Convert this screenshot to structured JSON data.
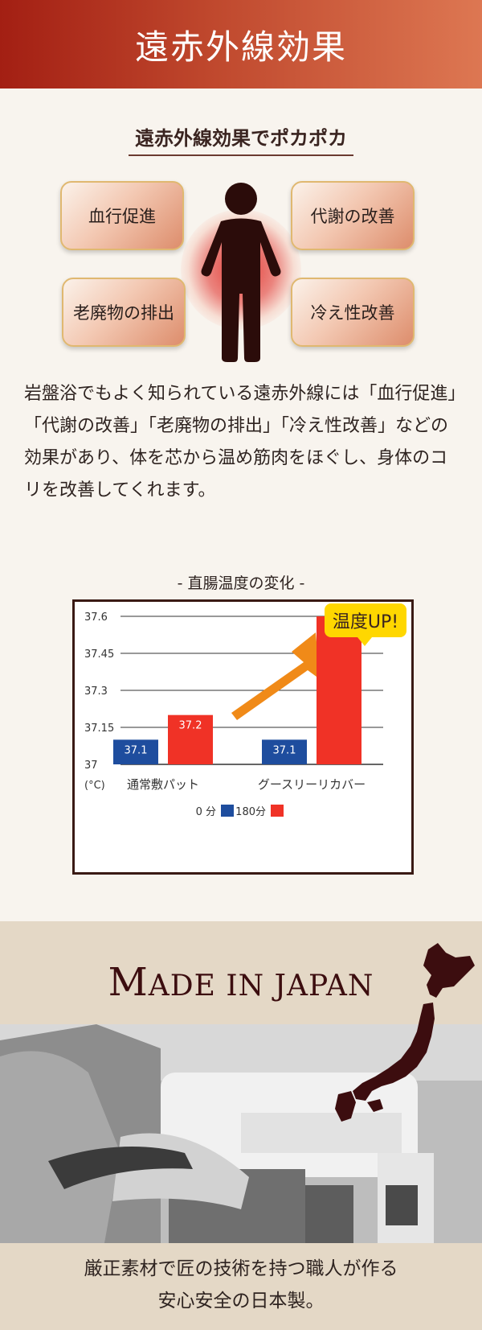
{
  "header": {
    "title": "遠赤外線効果"
  },
  "subheading": "遠赤外線効果でポカポカ",
  "effects": [
    "血行促進",
    "代謝の改善",
    "老廃物の排出",
    "冷え性改善"
  ],
  "body_text": "岩盤浴でもよく知られている遠赤外線には「血行促進」「代謝の改善」「老廃物の排出」「冷え性改善」などの効果があり、体を芯から温め筋肉をほぐし、身体のコリを改善してくれます。",
  "chart_title": "- 直腸温度の変化 -",
  "badge": "温度UP!",
  "chart_data": {
    "type": "bar",
    "categories": [
      "通常敷パット",
      "グースリーリカバー"
    ],
    "series": [
      {
        "name": "0 分",
        "values": [
          37.1,
          37.1
        ],
        "color": "#1e4d9e"
      },
      {
        "name": "180分",
        "values": [
          37.2,
          37.6
        ],
        "color": "#f03226"
      }
    ],
    "value_labels": [
      [
        "37.1",
        "37.2"
      ],
      [
        "37.1",
        "37.6"
      ]
    ],
    "ylim": [
      37,
      37.6
    ],
    "yticks": [
      "37",
      "37.15",
      "37.3",
      "37.45",
      "37.6"
    ],
    "yunit": "(°C)",
    "legend_position": "bottom",
    "grid": true
  },
  "japan": {
    "title_big": "M",
    "title_rest": "ADE IN JAPAN"
  },
  "caption": {
    "line1": "厳正素材で匠の技術を持つ職人が作る",
    "line2": "安心安全の日本製。"
  }
}
